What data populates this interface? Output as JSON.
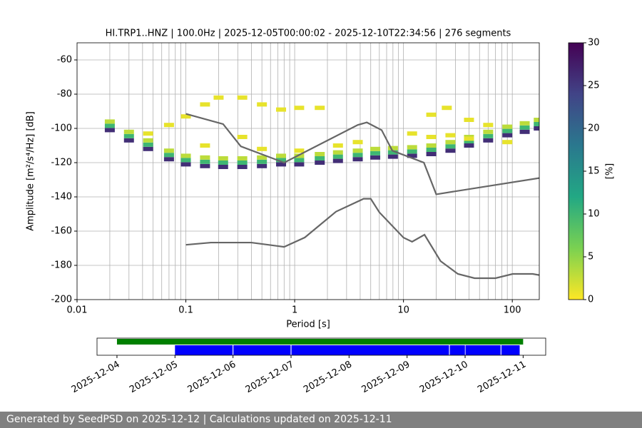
{
  "chart_data": [
    {
      "type": "psd-heatmap",
      "title": "HI.TRP1..HNZ | 100.0Hz | 2025-12-05T00:00:02 - 2025-12-10T22:34:56 | 276 segments",
      "x_label": "Period [s]",
      "y_label": "Amplitude [m²/s⁴/Hz] [dB]",
      "log_x": true,
      "grid": true,
      "xlim": [
        0.01,
        177
      ],
      "xticks": [
        {
          "value": 0.01,
          "label": "0.01"
        },
        {
          "value": 0.1,
          "label": "0.1"
        },
        1,
        10,
        100
      ],
      "xminorticks": [
        0.02,
        0.03,
        0.04,
        0.05,
        0.06,
        0.07,
        0.08,
        0.09,
        0.2,
        0.3,
        0.4,
        0.5,
        0.6,
        0.7,
        0.8,
        0.9,
        2,
        3,
        4,
        5,
        6,
        7,
        8,
        9,
        20,
        30,
        40,
        50,
        60,
        70,
        80,
        90
      ],
      "ylim": [
        -200,
        -50
      ],
      "yticks": [
        -200,
        -180,
        -160,
        -140,
        -120,
        -100,
        -80,
        -60
      ],
      "colormap": [
        "#fde725",
        "#7ad151",
        "#22a884",
        "#2a788e",
        "#414487",
        "#440154"
      ],
      "colorbar": {
        "label": "[%]",
        "lim": [
          0,
          30
        ],
        "ticks": [
          0,
          5,
          10,
          15,
          20,
          25,
          30
        ]
      },
      "cells": {
        "x": [
          0.02,
          0.02,
          0.02,
          0.03,
          0.03,
          0.03,
          0.045,
          0.045,
          0.045,
          0.07,
          0.07,
          0.07,
          0.1,
          0.1,
          0.1,
          0.15,
          0.15,
          0.15,
          0.22,
          0.22,
          0.22,
          0.33,
          0.33,
          0.33,
          0.5,
          0.5,
          0.5,
          0.75,
          0.75,
          0.75,
          1.1,
          1.1,
          1.1,
          1.7,
          1.7,
          1.7,
          2.5,
          2.5,
          2.5,
          3.8,
          3.8,
          3.8,
          5.5,
          5.5,
          5.5,
          8,
          8,
          8,
          12,
          12,
          12,
          18,
          18,
          18,
          27,
          27,
          27,
          40,
          40,
          40,
          60,
          60,
          60,
          90,
          90,
          90,
          130,
          130,
          130,
          175,
          175,
          175,
          0.1,
          0.15,
          0.2,
          0.33,
          0.5,
          0.75,
          1.1,
          1.7,
          0.15,
          0.33,
          0.5,
          1.1,
          2.5,
          3.8,
          12,
          18,
          25,
          40,
          60,
          18,
          27,
          40,
          90,
          0.045,
          0.07
        ],
        "y": [
          -101,
          -98.5,
          -96,
          -107,
          -104.5,
          -102,
          -112,
          -109.5,
          -107,
          -118,
          -115.5,
          -113,
          -121,
          -118.5,
          -116,
          -122,
          -119.5,
          -117,
          -122.5,
          -120,
          -117.5,
          -122.5,
          -120,
          -117.5,
          -122,
          -119.5,
          -117,
          -121,
          -118.5,
          -116,
          -121,
          -118.5,
          -116,
          -120,
          -117.5,
          -115,
          -119,
          -116.5,
          -114,
          -118,
          -115.5,
          -113,
          -117,
          -114.5,
          -112,
          -116.5,
          -114,
          -111.5,
          -116,
          -113.5,
          -111,
          -115,
          -112.5,
          -110,
          -113,
          -110.5,
          -108,
          -110,
          -107.5,
          -105,
          -107,
          -104.5,
          -102,
          -104,
          -101.5,
          -99,
          -102,
          -99.5,
          -97,
          -100,
          -97.5,
          -95,
          -93,
          -86,
          -82,
          -82,
          -86,
          -89,
          -88,
          -88,
          -110,
          -105,
          -112,
          -113,
          -110,
          -108,
          -103,
          -92,
          -88,
          -95,
          -98,
          -105,
          -104,
          -106,
          -108,
          -103,
          -98
        ],
        "values": [
          26,
          10,
          3,
          26,
          10,
          3,
          26,
          10,
          3,
          26,
          10,
          3,
          26,
          10,
          3,
          26,
          10,
          3,
          26,
          10,
          3,
          26,
          10,
          3,
          26,
          10,
          3,
          26,
          10,
          3,
          26,
          10,
          3,
          26,
          10,
          3,
          26,
          10,
          3,
          26,
          10,
          3,
          26,
          10,
          3,
          26,
          10,
          3,
          26,
          10,
          3,
          26,
          10,
          3,
          26,
          10,
          3,
          26,
          10,
          3,
          26,
          10,
          3,
          26,
          10,
          3,
          26,
          10,
          3,
          26,
          10,
          3,
          1,
          1,
          1,
          1,
          1,
          1,
          1,
          1,
          1,
          1,
          1,
          1,
          1,
          1,
          1,
          1,
          1,
          1,
          1,
          1,
          1,
          1,
          1,
          1,
          1
        ]
      },
      "series": [
        {
          "color": "#666666",
          "x": [
            0.1,
            0.22,
            0.32,
            0.8,
            3.8,
            4.6,
            6.3,
            7.9,
            15.4,
            20,
            177
          ],
          "values": [
            -91.5,
            -97.5,
            -110.5,
            -120,
            -98,
            -96.5,
            -101,
            -113,
            -120,
            -138.5,
            -129
          ]
        },
        {
          "color": "#666666",
          "x": [
            0.1,
            0.17,
            0.4,
            0.8,
            1.24,
            2.4,
            4.3,
            5,
            6,
            10,
            12,
            15.6,
            21.9,
            31.6,
            45,
            70,
            101,
            154,
            177
          ],
          "values": [
            -168,
            -166.7,
            -166.7,
            -169.2,
            -163.7,
            -148.6,
            -141.1,
            -141.1,
            -149,
            -163.8,
            -166.2,
            -162.1,
            -177.5,
            -185,
            -187.5,
            -187.5,
            -185,
            -185,
            -185.7
          ]
        }
      ]
    },
    {
      "type": "timeline",
      "xlim": [
        "2025-12-03T15:45",
        "2025-12-11T09:20"
      ],
      "xticks": [
        "2025-12-04",
        "2025-12-05",
        "2025-12-06",
        "2025-12-07",
        "2025-12-08",
        "2025-12-09",
        "2025-12-10",
        "2025-12-11"
      ],
      "series": [
        {
          "color": "#008000",
          "segments": [
            {
              "start": "2025-12-04T00:00",
              "end": "2025-12-11T00:00"
            }
          ]
        },
        {
          "color": "#0000ff",
          "segments": [
            {
              "start": "2025-12-05T00:00",
              "end": "2025-12-05T23:50"
            },
            {
              "start": "2025-12-06T00:10",
              "end": "2025-12-06T23:50"
            },
            {
              "start": "2025-12-07T00:10",
              "end": "2025-12-09T17:20"
            },
            {
              "start": "2025-12-09T17:40",
              "end": "2025-12-09T23:55"
            },
            {
              "start": "2025-12-10T00:10",
              "end": "2025-12-10T14:40"
            },
            {
              "start": "2025-12-10T15:00",
              "end": "2025-12-10T22:34"
            }
          ]
        }
      ]
    }
  ],
  "footer": {
    "text": "Generated by SeedPSD on 2025-12-12 | Calculations updated on 2025-12-11"
  }
}
